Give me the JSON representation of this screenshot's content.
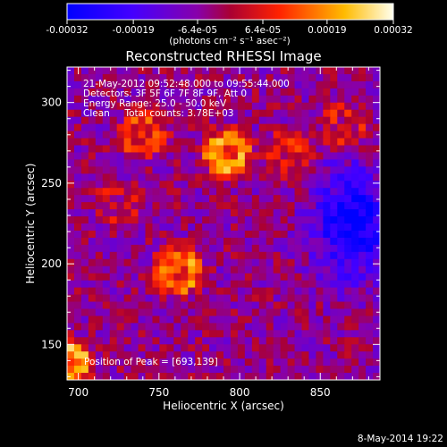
{
  "chart_data": {
    "type": "heatmap",
    "title": "Reconstructed RHESSI Image",
    "xlabel": "Heliocentric X (arcsec)",
    "ylabel": "Heliocentric Y (arcsec)",
    "xlim": [
      693,
      887
    ],
    "ylim": [
      128,
      322
    ],
    "x_ticks": [
      700,
      750,
      800,
      850
    ],
    "y_ticks": [
      150,
      200,
      250,
      300
    ],
    "colorbar": {
      "label": "(photons cm⁻² s⁻¹ asec⁻²)",
      "range": [
        -0.00032,
        0.00032
      ],
      "tick_labels": [
        "-0.00032",
        "-0.00019",
        "-6.4e-05",
        "6.4e-05",
        "0.00019",
        "0.00032"
      ],
      "tick_values": [
        -0.00032,
        -0.00019,
        -6.4e-05,
        6.4e-05,
        0.00019,
        0.00032
      ]
    },
    "annotations": {
      "time_range": "21-May-2012 09:52:48.000 to 09:55:44.000",
      "detectors": "Detectors: 3F 5F 6F 7F 8F 9F, Att 0",
      "energy": "Energy Range: 25.0 - 50.0 keV",
      "clean": "Clean     Total counts: 3.78E+03",
      "peak": "Position of Peak = [693,139]"
    },
    "sources": [
      {
        "x": 792,
        "y": 268,
        "value": 0.00032
      },
      {
        "x": 762,
        "y": 195,
        "value": 0.00026
      },
      {
        "x": 693,
        "y": 139,
        "value": 0.00032
      },
      {
        "x": 740,
        "y": 280,
        "value": 0.00018
      },
      {
        "x": 830,
        "y": 268,
        "value": 0.00014
      },
      {
        "x": 865,
        "y": 285,
        "value": 0.00012
      },
      {
        "x": 725,
        "y": 236,
        "value": 9e-05
      }
    ],
    "background": {
      "x": 870,
      "y": 225,
      "value": -0.00028
    }
  },
  "footer": {
    "timestamp": "8-May-2014 19:22"
  },
  "colors": {
    "background": "#000000",
    "text": "#ffffff"
  }
}
